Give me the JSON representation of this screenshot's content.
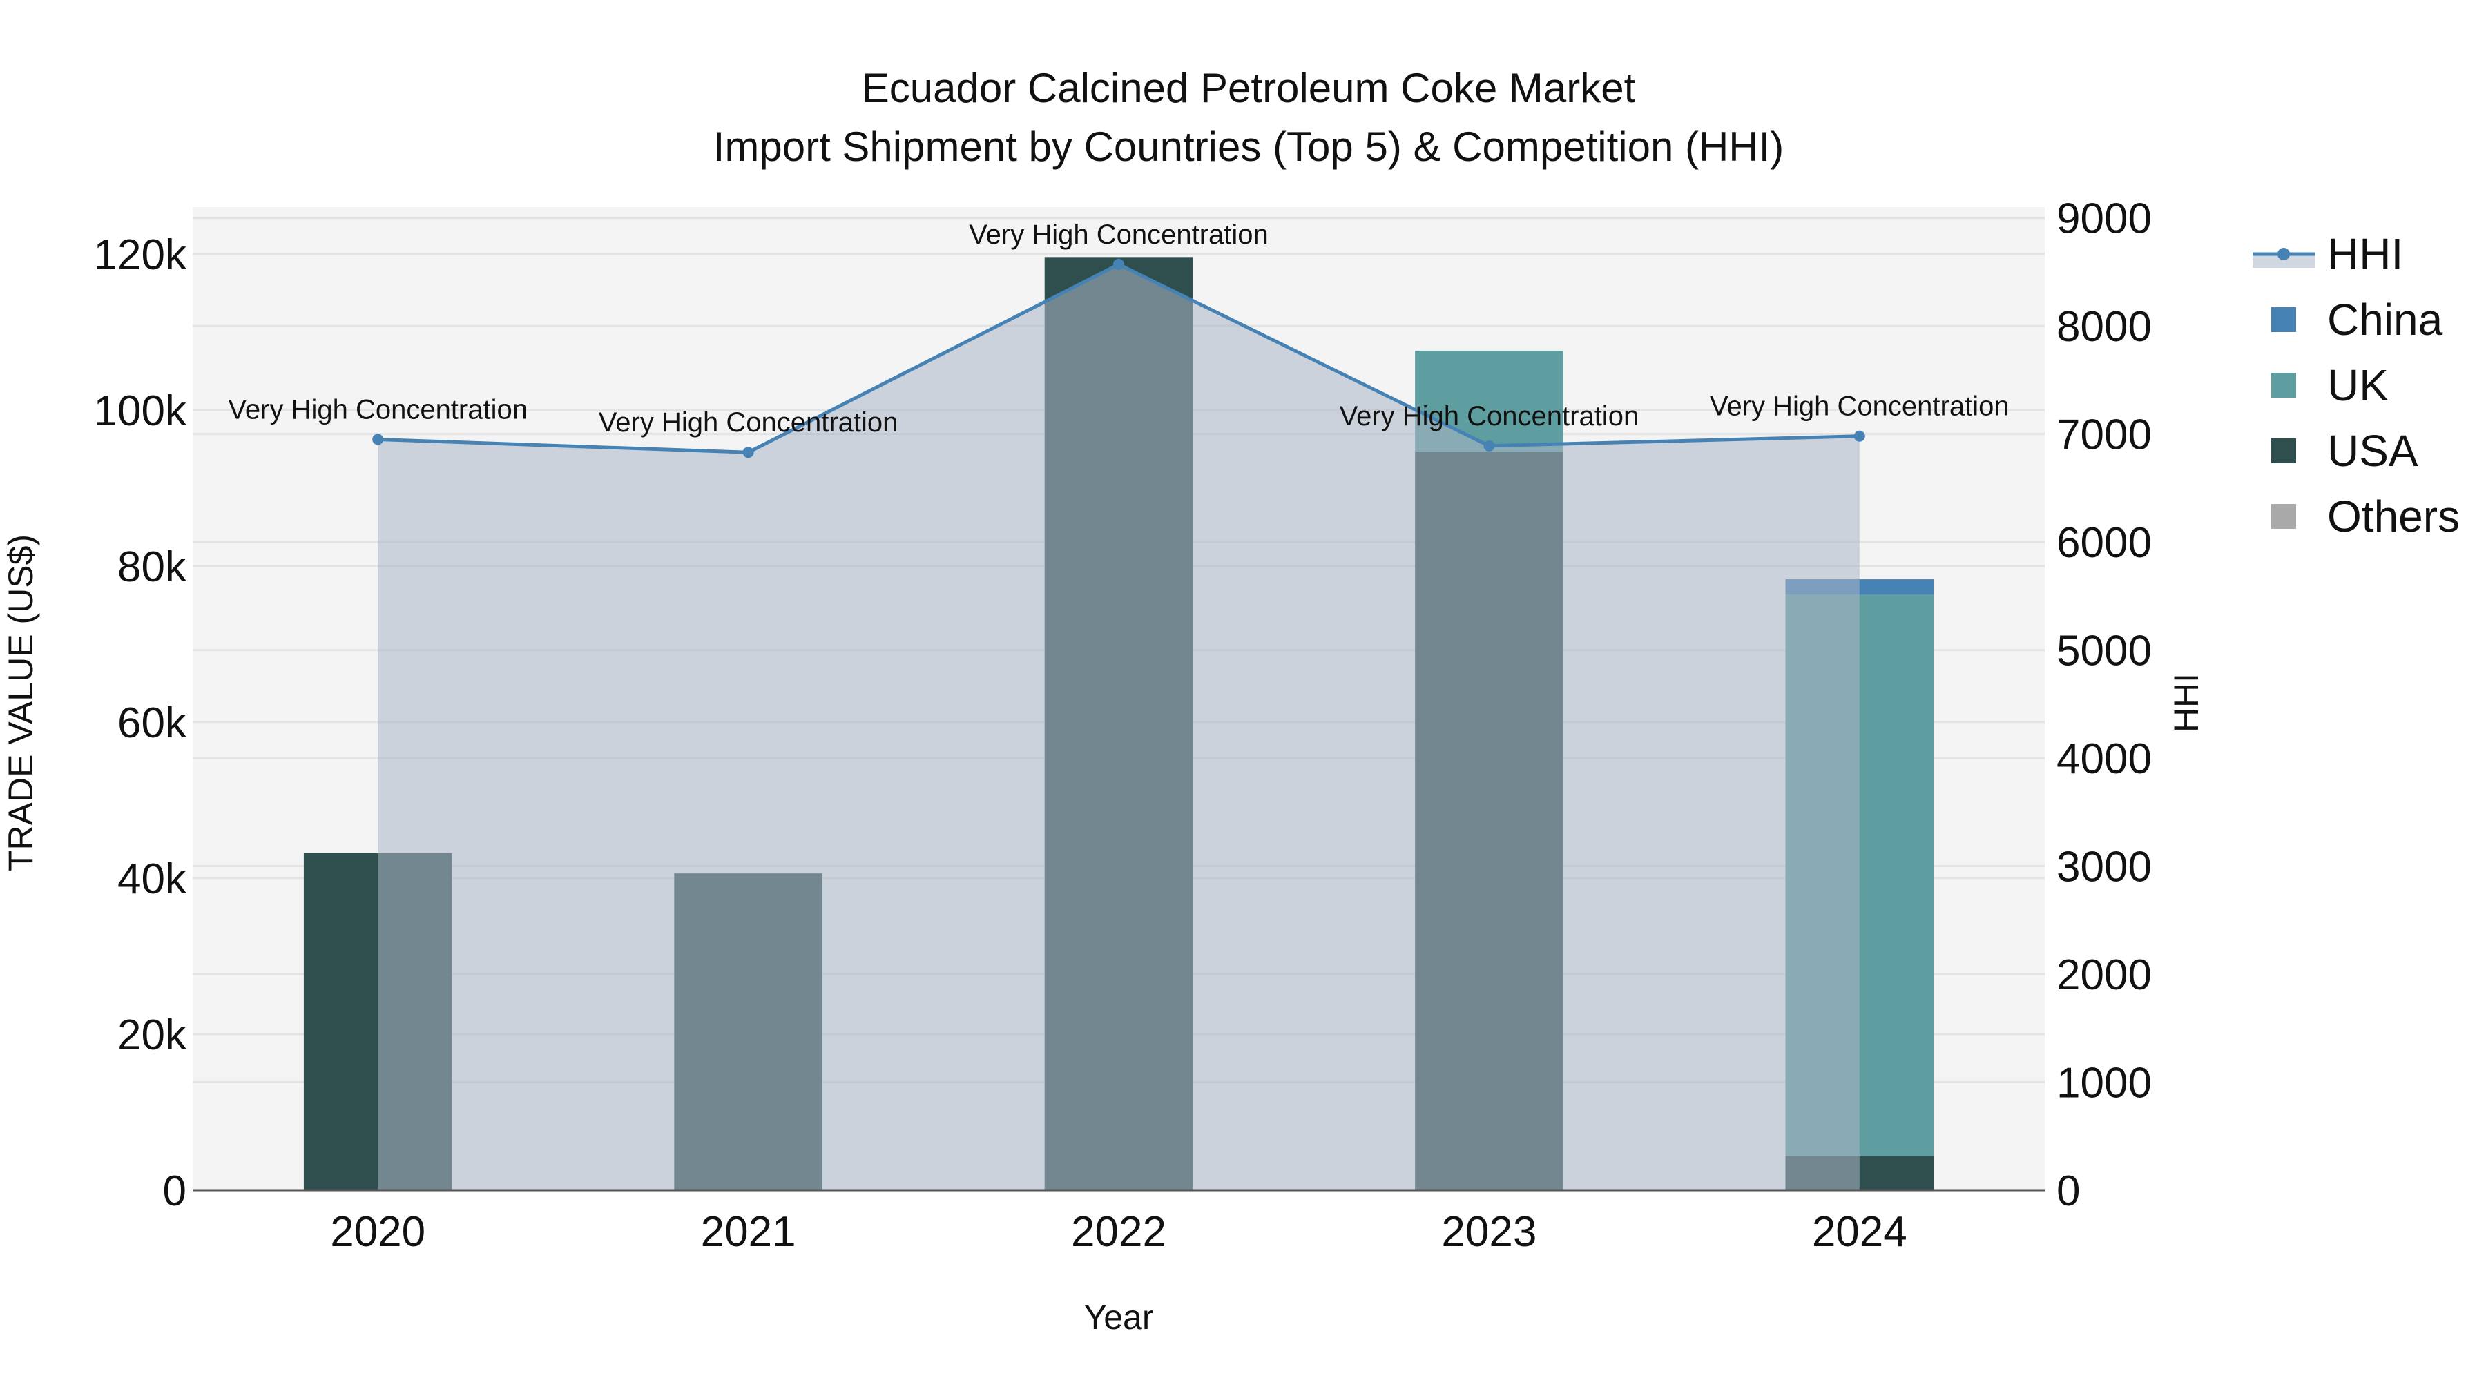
{
  "header": {
    "title_line1": "Ecuador Calcined Petroleum Coke Market",
    "title_line2": "Import Shipment by Countries (Top 5) & Competition (HHI)"
  },
  "axes": {
    "x_title": "Year",
    "y_left_title": "TRADE VALUE (US$)",
    "y_right_title": "HHI"
  },
  "legend": {
    "items": [
      {
        "label": "HHI",
        "type": "line",
        "color": "#4682B4"
      },
      {
        "label": "China",
        "type": "bar",
        "color": "#4682B4"
      },
      {
        "label": "UK",
        "type": "bar",
        "color": "#5F9EA0"
      },
      {
        "label": "USA",
        "type": "bar",
        "color": "#2F4F4F"
      },
      {
        "label": "Others",
        "type": "bar",
        "color": "#A9A9A9"
      }
    ]
  },
  "colors": {
    "plot_bg": "#F4F4F4",
    "grid": "#E3E3E3",
    "hhi_line": "#4682B4",
    "hhi_fill": "rgba(172,182,198,0.55)",
    "axis_line": "#555555"
  },
  "chart_data": {
    "type": "bar",
    "barmode": "stack",
    "title": "Ecuador Calcined Petroleum Coke Market — Import Shipment by Countries (Top 5) & Competition (HHI)",
    "xlabel": "Year",
    "ylabel": "TRADE VALUE (US$)",
    "y2label": "HHI",
    "categories": [
      "2020",
      "2021",
      "2022",
      "2023",
      "2024"
    ],
    "ylim": [
      0,
      126000
    ],
    "y2lim": [
      0,
      9100
    ],
    "y_ticks": [
      0,
      20000,
      40000,
      60000,
      80000,
      100000,
      120000
    ],
    "y_tick_labels": [
      "0",
      "20k",
      "40k",
      "60k",
      "80k",
      "100k",
      "120k"
    ],
    "y2_ticks": [
      0,
      1000,
      2000,
      3000,
      4000,
      5000,
      6000,
      7000,
      8000,
      9000
    ],
    "y2_tick_labels": [
      "0",
      "1000",
      "2000",
      "3000",
      "4000",
      "5000",
      "6000",
      "7000",
      "8000",
      "9000"
    ],
    "series": [
      {
        "name": "USA",
        "type": "bar",
        "color": "#2F4F4F",
        "values": [
          43200,
          40600,
          119600,
          94600,
          4400
        ]
      },
      {
        "name": "UK",
        "type": "bar",
        "color": "#5F9EA0",
        "values": [
          0,
          0,
          0,
          13000,
          71900
        ]
      },
      {
        "name": "China",
        "type": "bar",
        "color": "#4682B4",
        "values": [
          0,
          0,
          0,
          0,
          2000
        ]
      },
      {
        "name": "Others",
        "type": "bar",
        "color": "#A9A9A9",
        "values": [
          0,
          0,
          0,
          0,
          0
        ]
      },
      {
        "name": "HHI",
        "type": "line",
        "axis": "y2",
        "color": "#4682B4",
        "fill": "tozeroy",
        "values": [
          6950,
          6830,
          8570,
          6890,
          6980
        ]
      }
    ],
    "annotations": [
      {
        "x": "2020",
        "text": "Very High Concentration"
      },
      {
        "x": "2021",
        "text": "Very High Concentration"
      },
      {
        "x": "2022",
        "text": "Very High Concentration"
      },
      {
        "x": "2023",
        "text": "Very High Concentration"
      },
      {
        "x": "2024",
        "text": "Very High Concentration"
      }
    ],
    "grid": true,
    "legend_position": "right"
  }
}
